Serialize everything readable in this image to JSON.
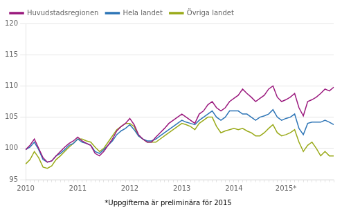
{
  "chart_data": {
    "type": "line",
    "footnote": "*Uppgifterna är preliminära för 2015",
    "categories": [
      "2010",
      null,
      null,
      null,
      null,
      null,
      null,
      null,
      null,
      null,
      null,
      null,
      "2011",
      null,
      null,
      null,
      null,
      null,
      null,
      null,
      null,
      null,
      null,
      null,
      "2012",
      null,
      null,
      null,
      null,
      null,
      null,
      null,
      null,
      null,
      null,
      null,
      "2013",
      null,
      null,
      null,
      null,
      null,
      null,
      null,
      null,
      null,
      null,
      null,
      "2014",
      null,
      null,
      null,
      null,
      null,
      null,
      null,
      null,
      null,
      null,
      null,
      "2015*",
      null,
      null,
      null,
      null,
      null,
      null,
      null,
      null,
      null,
      null,
      null
    ],
    "series": [
      {
        "name": "Huvudstadsregionen",
        "color": "#9b1a7e",
        "values": [
          99.8,
          100.5,
          101.5,
          100.0,
          98.5,
          97.8,
          98.0,
          98.8,
          99.5,
          100.2,
          100.8,
          101.2,
          101.8,
          101.2,
          100.8,
          100.5,
          99.2,
          98.8,
          99.5,
          100.5,
          101.5,
          102.8,
          103.5,
          104.0,
          104.8,
          103.8,
          102.2,
          101.5,
          101.0,
          101.0,
          101.8,
          102.5,
          103.2,
          104.0,
          104.5,
          105.0,
          105.5,
          105.0,
          104.5,
          104.0,
          105.5,
          106.0,
          107.0,
          107.5,
          106.5,
          106.0,
          106.5,
          107.5,
          108.0,
          108.5,
          109.5,
          108.8,
          108.2,
          107.5,
          108.0,
          108.5,
          109.5,
          110.0,
          108.2,
          107.5,
          107.8,
          108.2,
          108.8,
          106.5,
          105.2,
          107.5,
          107.8,
          108.2,
          108.8,
          109.5,
          109.2,
          109.8
        ]
      },
      {
        "name": "Hela landet",
        "color": "#2e75b6",
        "values": [
          99.8,
          100.2,
          101.0,
          99.8,
          98.2,
          97.8,
          98.0,
          98.8,
          99.2,
          99.8,
          100.5,
          100.8,
          101.5,
          101.0,
          100.8,
          100.5,
          99.5,
          99.2,
          99.8,
          100.5,
          101.2,
          102.2,
          102.8,
          103.2,
          103.8,
          103.0,
          102.0,
          101.5,
          101.2,
          101.2,
          101.5,
          102.0,
          102.5,
          103.0,
          103.5,
          104.0,
          104.5,
          104.2,
          104.0,
          103.8,
          104.5,
          105.0,
          105.5,
          106.0,
          105.0,
          104.5,
          105.0,
          106.0,
          106.0,
          106.0,
          105.5,
          105.5,
          105.0,
          104.5,
          105.0,
          105.2,
          105.5,
          106.2,
          105.0,
          104.5,
          104.8,
          105.0,
          105.5,
          103.2,
          102.2,
          104.0,
          104.2,
          104.2,
          104.2,
          104.5,
          104.2,
          103.8
        ]
      },
      {
        "name": "Övriga landet",
        "color": "#9aaa1a",
        "values": [
          97.5,
          98.2,
          99.5,
          98.5,
          97.0,
          96.8,
          97.2,
          98.2,
          98.8,
          99.5,
          100.2,
          100.8,
          101.5,
          101.5,
          101.2,
          101.0,
          100.2,
          99.5,
          100.0,
          101.0,
          102.0,
          103.0,
          103.5,
          104.0,
          104.0,
          103.5,
          102.0,
          101.5,
          101.0,
          101.0,
          101.0,
          101.5,
          102.0,
          102.5,
          103.0,
          103.5,
          104.0,
          103.8,
          103.5,
          103.0,
          104.0,
          104.5,
          105.0,
          105.0,
          103.5,
          102.5,
          102.8,
          103.0,
          103.2,
          103.0,
          103.2,
          102.8,
          102.5,
          102.0,
          102.0,
          102.5,
          103.2,
          103.8,
          102.5,
          102.0,
          102.2,
          102.5,
          103.0,
          101.0,
          99.5,
          100.5,
          101.0,
          100.0,
          98.8,
          99.5,
          98.8,
          98.8
        ]
      }
    ],
    "ylim": [
      95,
      120
    ],
    "yticks": [
      95,
      100,
      105,
      110,
      115,
      120
    ],
    "grid": "y",
    "legend": "upper left"
  }
}
